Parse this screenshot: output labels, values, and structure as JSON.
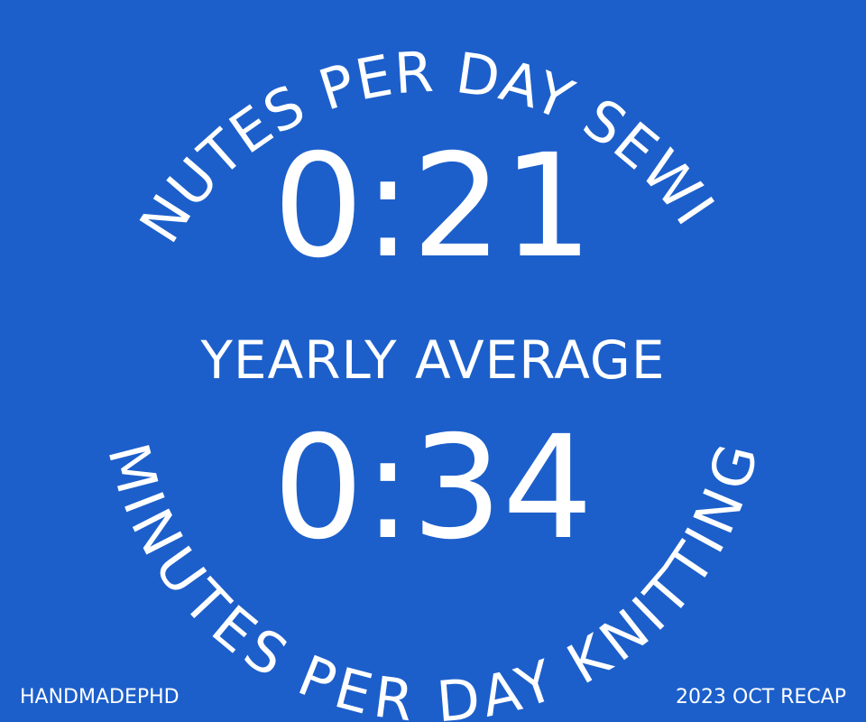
{
  "top_arc": "MINUTES PER DAY SEWING",
  "sewing_value": "0:21",
  "middle_label": "YEARLY AVERAGE",
  "knitting_value": "0:34",
  "bottom_arc": "MINUTES PER DAY KNITTING",
  "footer": {
    "brand": "HANDMADEPHD",
    "recap": "2023 OCT RECAP"
  },
  "colors": {
    "background": "#1c5fcb",
    "text": "#ffffff"
  }
}
